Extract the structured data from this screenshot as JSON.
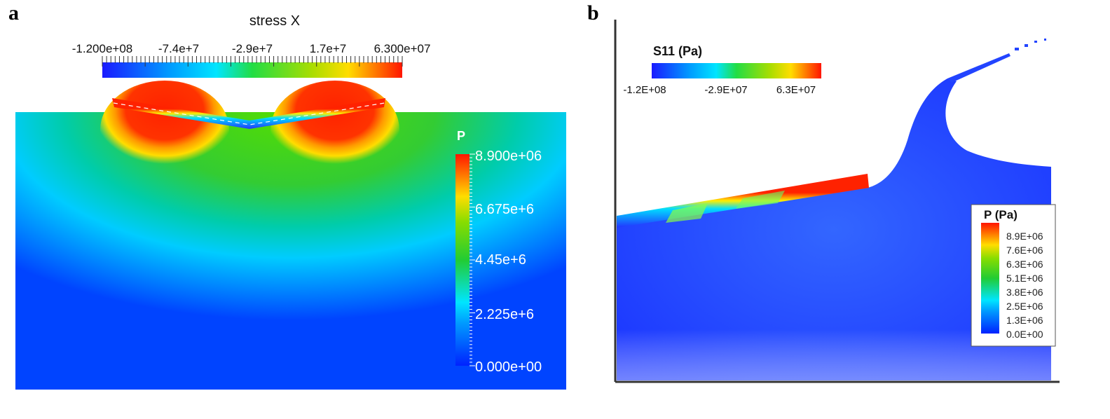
{
  "panel_a": {
    "letter": "a",
    "stress_bar": {
      "title": "stress X",
      "ticks": [
        "-1.200e+08",
        "-7.4e+7",
        "-2.9e+7",
        "1.7e+7",
        "6.300e+07"
      ]
    },
    "pressure_bar": {
      "title": "P",
      "ticks": [
        "8.900e+06",
        "6.675e+6",
        "4.45e+6",
        "2.225e+6",
        "0.000e+00"
      ]
    }
  },
  "panel_b": {
    "letter": "b",
    "stress_bar": {
      "title": "S11 (Pa)",
      "ticks": [
        "-1.2E+08",
        "-2.9E+07",
        "6.3E+07"
      ]
    },
    "pressure_bar": {
      "title": "P (Pa)",
      "ticks": [
        "8.9E+06",
        "7.6E+06",
        "6.3E+06",
        "5.1E+06",
        "3.8E+06",
        "2.5E+06",
        "1.3E+06",
        "0.0E+00"
      ]
    }
  },
  "colors": {
    "jet_blue": "#0033ff",
    "jet_cyan": "#00e5ff",
    "jet_green": "#22cc22",
    "jet_yellow": "#ffee00",
    "jet_red": "#ff1a00"
  }
}
